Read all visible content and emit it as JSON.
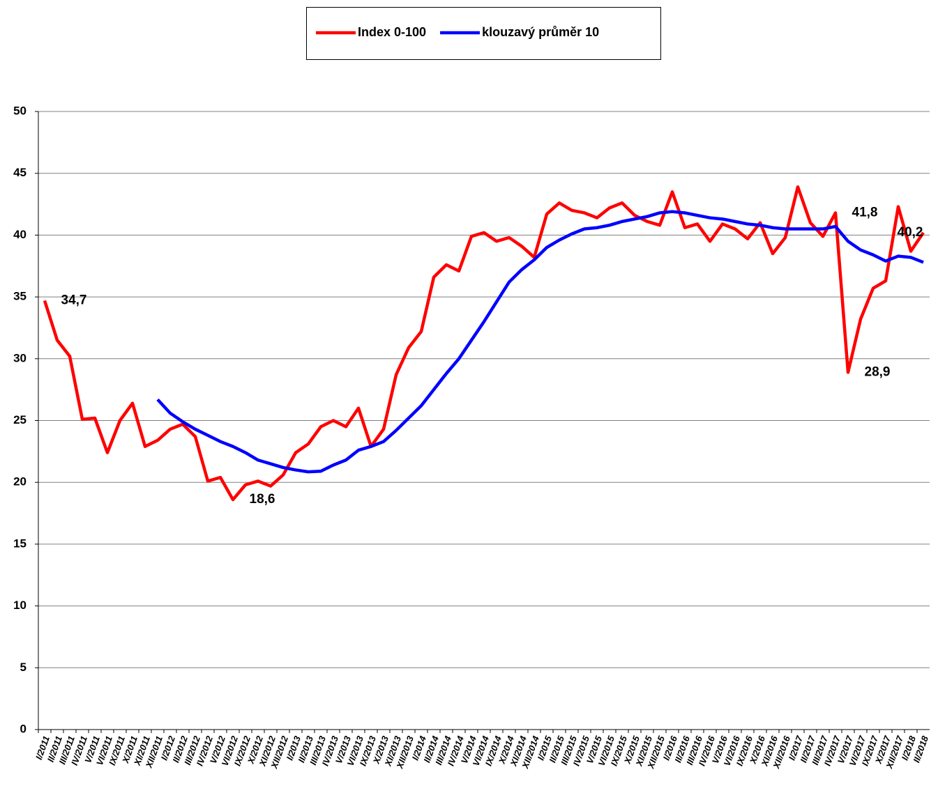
{
  "chart_data": {
    "type": "line",
    "categories": [
      "I/2011",
      "II/2011",
      "III/2011",
      "IV/2011",
      "V/2011",
      "VI/2011",
      "IX/2011",
      "X/2011",
      "XI/2011",
      "XII/2011",
      "I/2012",
      "II/2012",
      "III/2012",
      "IV/2012",
      "V/2012",
      "VI/2012",
      "IX/2012",
      "X/2012",
      "XI/2012",
      "XII/2012",
      "I/2013",
      "II/2013",
      "III/2013",
      "IV/2013",
      "V/2013",
      "VI/2013",
      "IX/2013",
      "X/2013",
      "XI/2013",
      "XII/2013",
      "I/2014",
      "II/2014",
      "III/2014",
      "IV/2014",
      "V/2014",
      "VI/2014",
      "IX/2014",
      "X/2014",
      "XI/2014",
      "XII/2014",
      "I/2015",
      "II/2015",
      "III/2015",
      "IV/2015",
      "V/2015",
      "VI/2015",
      "IX/2015",
      "X/2015",
      "XI/2015",
      "XII/2015",
      "I/2016",
      "II/2016",
      "III/2016",
      "IV/2016",
      "V/2016",
      "VI/2016",
      "IX/2016",
      "X/2016",
      "XI/2016",
      "XII/2016",
      "I/2017",
      "II/2017",
      "III/2017",
      "IV/2017",
      "V/2017",
      "VI/2017",
      "IX/2017",
      "X/2017",
      "XII/2017",
      "I/2018",
      "II/2018"
    ],
    "series": [
      {
        "name": "Index 0-100",
        "color": "#ff0000",
        "values": [
          34.7,
          31.5,
          30.2,
          25.1,
          25.2,
          22.4,
          25.0,
          26.4,
          22.9,
          23.4,
          24.3,
          24.7,
          23.7,
          20.1,
          20.4,
          18.6,
          19.8,
          20.1,
          19.7,
          20.6,
          22.4,
          23.1,
          24.5,
          25.0,
          24.5,
          26.0,
          22.9,
          24.3,
          28.7,
          30.9,
          32.2,
          36.6,
          37.6,
          37.1,
          39.9,
          40.2,
          39.5,
          39.8,
          39.1,
          38.2,
          41.7,
          42.6,
          42.0,
          41.8,
          41.4,
          42.2,
          42.6,
          41.6,
          41.1,
          40.8,
          43.5,
          40.6,
          40.9,
          39.5,
          40.9,
          40.5,
          39.7,
          41.0,
          38.5,
          39.8,
          43.9,
          41.0,
          39.9,
          41.8,
          28.9,
          33.2,
          35.7,
          36.3,
          42.3,
          38.7,
          40.2
        ],
        "value_labels": [
          "34,7",
          null,
          null,
          null,
          null,
          null,
          null,
          null,
          null,
          null,
          null,
          null,
          null,
          null,
          null,
          "18,6",
          null,
          null,
          null,
          null,
          null,
          null,
          null,
          null,
          null,
          null,
          null,
          null,
          null,
          null,
          null,
          null,
          null,
          null,
          null,
          null,
          null,
          null,
          null,
          null,
          null,
          null,
          null,
          null,
          null,
          null,
          null,
          null,
          null,
          null,
          null,
          null,
          null,
          null,
          null,
          null,
          null,
          null,
          null,
          null,
          null,
          null,
          null,
          "41,8",
          "28,9",
          null,
          null,
          null,
          null,
          null,
          "40,2"
        ]
      },
      {
        "name": "klouzavý průměr 10",
        "color": "#0000ff",
        "values": [
          null,
          null,
          null,
          null,
          null,
          null,
          null,
          null,
          null,
          26.7,
          25.6,
          24.9,
          24.3,
          23.8,
          23.3,
          22.9,
          22.4,
          21.8,
          21.5,
          21.2,
          21.0,
          20.85,
          20.9,
          21.4,
          21.8,
          22.6,
          22.9,
          23.3,
          24.2,
          25.2,
          26.2,
          27.5,
          28.8,
          30.0,
          31.5,
          33.0,
          34.6,
          36.2,
          37.2,
          38.0,
          39.0,
          39.6,
          40.1,
          40.5,
          40.6,
          40.8,
          41.1,
          41.3,
          41.5,
          41.8,
          41.9,
          41.8,
          41.6,
          41.4,
          41.3,
          41.1,
          40.9,
          40.8,
          40.6,
          40.5,
          40.5,
          40.5,
          40.5,
          40.7,
          39.5,
          38.8,
          38.4,
          37.9,
          38.3,
          38.2,
          37.8
        ]
      }
    ],
    "ylim": [
      0,
      50
    ],
    "yticks": [
      0,
      5,
      10,
      15,
      20,
      25,
      30,
      35,
      40,
      45,
      50
    ],
    "grid": true,
    "legend": "top"
  }
}
